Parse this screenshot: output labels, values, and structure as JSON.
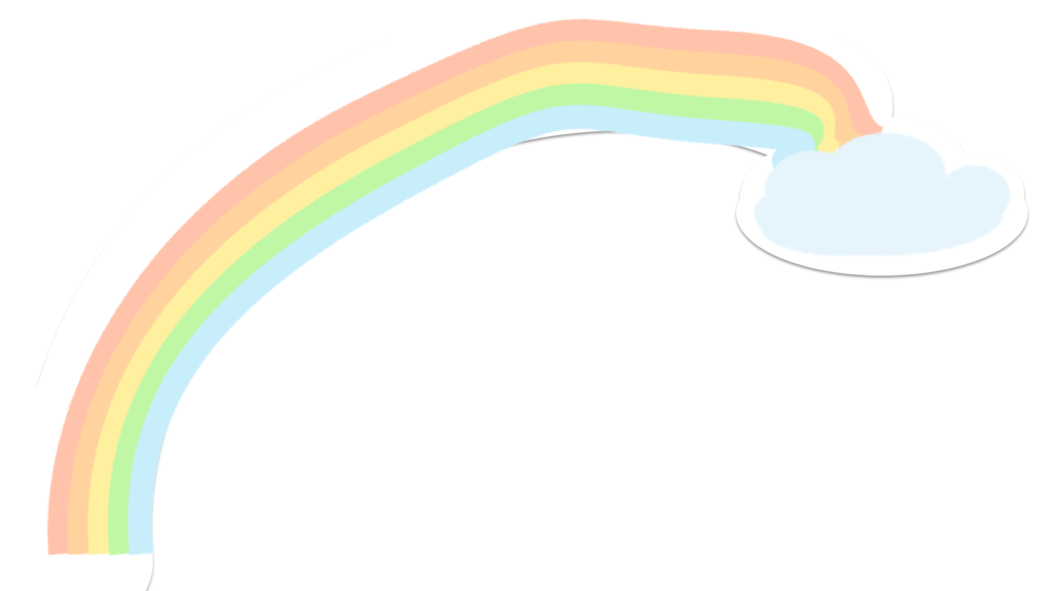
{
  "sticker": {
    "subject": "rainbow-with-cloud",
    "outline_color": "#ffffff",
    "outline_shadow": "#8a8a8a",
    "bands": [
      {
        "name": "red",
        "color": "#ffc2aa"
      },
      {
        "name": "orange",
        "color": "#ffd29e"
      },
      {
        "name": "yellow",
        "color": "#fff0a0"
      },
      {
        "name": "green",
        "color": "#bff7a4"
      },
      {
        "name": "blue",
        "color": "#c8eefc"
      }
    ],
    "cloud_color": "#e6f5fc"
  }
}
